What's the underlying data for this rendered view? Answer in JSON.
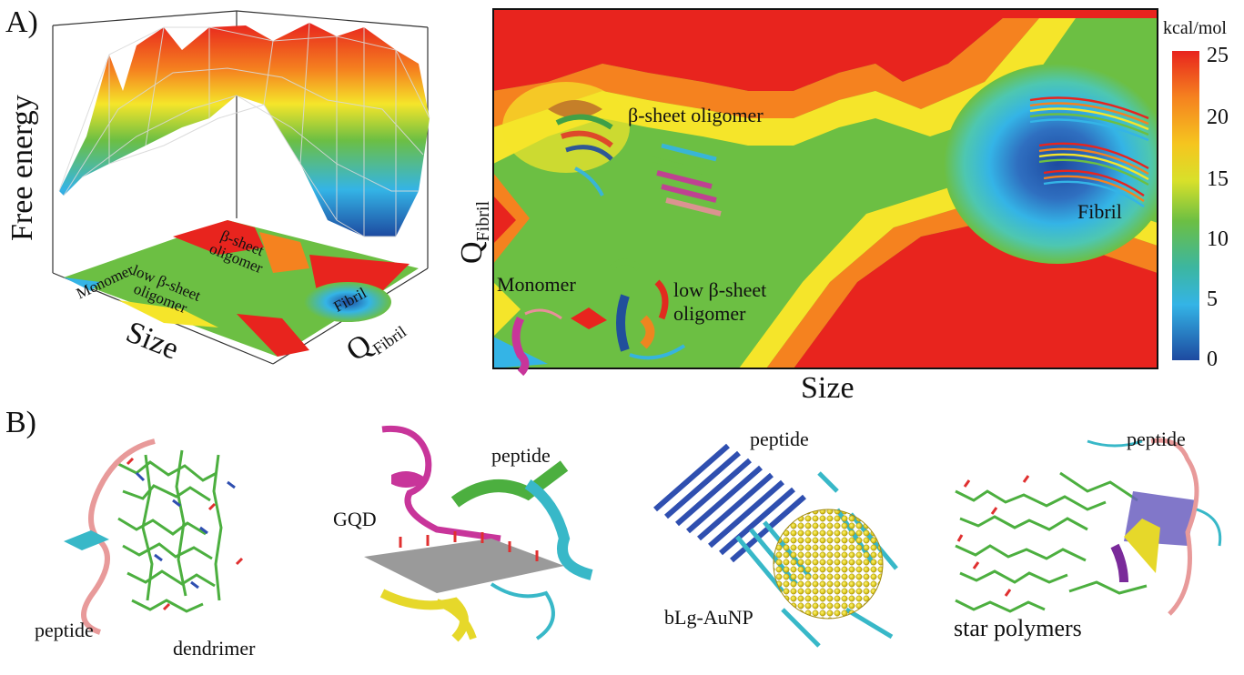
{
  "panel_a": {
    "label": "A)",
    "surface3d": {
      "z_axis_label": "Free energy",
      "x_axis_label": "Size",
      "y_axis_label_main": "Q",
      "y_axis_label_sub": "Fibril",
      "floor_labels": {
        "monomer": "Monomer",
        "low_sheet_line1": "low β-sheet",
        "low_sheet_line2": "oligomer",
        "beta_sheet_line1": "β-sheet",
        "beta_sheet_line2": "oligomer",
        "fibril": "Fibril"
      }
    },
    "contour_map": {
      "x_axis_label": "Size",
      "y_axis_label_main": "Q",
      "y_axis_label_sub": "Fibril",
      "labels": {
        "beta_sheet_oligomer": "β-sheet oligomer",
        "monomer": "Monomer",
        "low_sheet_line1": "low β-sheet",
        "low_sheet_line2": "oligomer",
        "fibril": "Fibril"
      }
    },
    "colorbar": {
      "unit": "kcal/mol",
      "ticks": [
        "25",
        "20",
        "15",
        "10",
        "5",
        "0"
      ]
    }
  },
  "panel_b": {
    "label": "B)",
    "items": [
      {
        "label_a": "peptide",
        "label_b": "dendrimer"
      },
      {
        "label_a": "GQD",
        "label_b": "peptide"
      },
      {
        "label_a": "peptide",
        "label_b": "bLg-AuNP"
      },
      {
        "label_a": "peptide",
        "label_b": "star polymers"
      }
    ]
  },
  "colors": {
    "red": "#e8241e",
    "orange": "#f5821f",
    "yellow": "#f5e52a",
    "green": "#6cbf43",
    "cyan": "#34b4e6",
    "blue": "#1d4aa0",
    "pink": "#e88f9a",
    "magenta": "#c8359a",
    "gold": "#d9c21a",
    "gray": "#8a8a8a"
  }
}
